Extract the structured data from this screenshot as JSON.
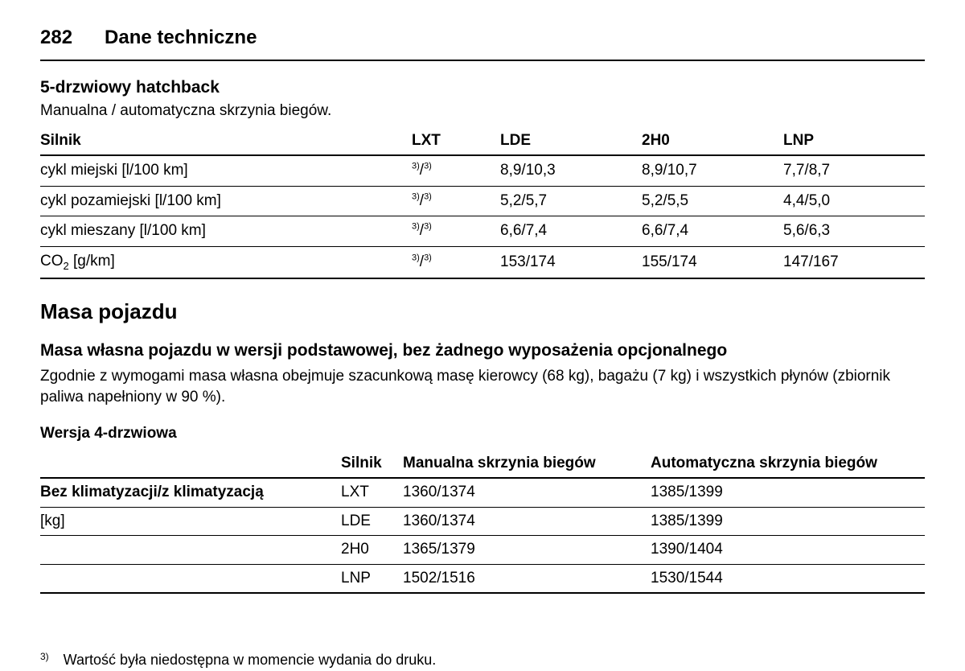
{
  "header": {
    "page_number": "282",
    "chapter_title": "Dane techniczne"
  },
  "section1": {
    "title": "5-drzwiowy hatchback",
    "subtitle": "Manualna / automatyczna skrzynia biegów.",
    "col_engine": "Silnik",
    "col_lxt": "LXT",
    "col_lde": "LDE",
    "col_2h0": "2H0",
    "col_lnp": "LNP",
    "rows": [
      {
        "label": "cykl miejski [l/100 km]",
        "lxt_a": "3)",
        "lxt_b": "3)",
        "lde": "8,9/10,3",
        "h2o": "8,9/10,7",
        "lnp": "7,7/8,7"
      },
      {
        "label": "cykl pozamiejski [l/100 km]",
        "lxt_a": "3)",
        "lxt_b": "3)",
        "lde": "5,2/5,7",
        "h2o": "5,2/5,5",
        "lnp": "4,4/5,0"
      },
      {
        "label": "cykl mieszany [l/100 km]",
        "lxt_a": "3)",
        "lxt_b": "3)",
        "lde": "6,6/7,4",
        "h2o": "6,6/7,4",
        "lnp": "5,6/6,3"
      },
      {
        "label_pre": "CO",
        "label_sub": "2",
        "label_post": " [g/km]",
        "lxt_a": "3)",
        "lxt_b": "3)",
        "lde": "153/174",
        "h2o": "155/174",
        "lnp": "147/167"
      }
    ]
  },
  "section2": {
    "title": "Masa pojazdu",
    "subtitle": "Masa własna pojazdu w wersji podstawowej, bez żadnego wyposażenia opcjonalnego",
    "desc": "Zgodnie z wymogami masa własna obejmuje szacunkową masę kierowcy (68 kg), bagażu (7 kg) i wszystkich płynów (zbiornik paliwa napełniony w 90 %).",
    "version_title": "Wersja 4-drzwiowa",
    "col_engine": "Silnik",
    "col_manual": "Manualna skrzynia biegów",
    "col_auto": "Automatyczna skrzynia biegów",
    "row_label1": "Bez klimatyzacji/z klimatyzacją",
    "row_label2": "[kg]",
    "rows": [
      {
        "engine": "LXT",
        "manual": "1360/1374",
        "auto": "1385/1399"
      },
      {
        "engine": "LDE",
        "manual": "1360/1374",
        "auto": "1385/1399"
      },
      {
        "engine": "2H0",
        "manual": "1365/1379",
        "auto": "1390/1404"
      },
      {
        "engine": "LNP",
        "manual": "1502/1516",
        "auto": "1530/1544"
      }
    ]
  },
  "footnote": {
    "mark": "3)",
    "text": "Wartość była niedostępna w momencie wydania do druku."
  }
}
